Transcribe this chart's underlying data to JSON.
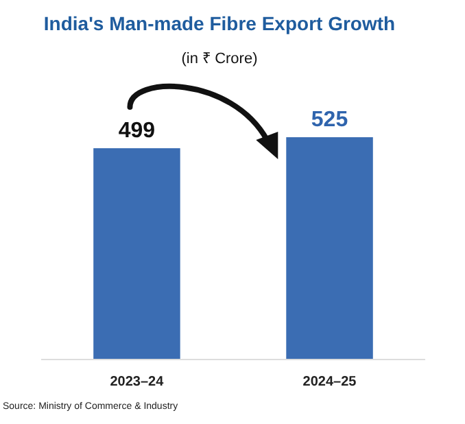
{
  "chart_data": {
    "type": "bar",
    "title": "India's Man-made Fibre Export Growth",
    "subtitle": "(in ₹ Crore)",
    "categories": [
      "2023–24",
      "2024–25"
    ],
    "values": [
      499,
      525
    ],
    "color": "#3b6db3",
    "tick_labels": "x",
    "data_labels": true,
    "annotations": [
      "Source: Ministry of Commerce & Industry"
    ]
  }
}
